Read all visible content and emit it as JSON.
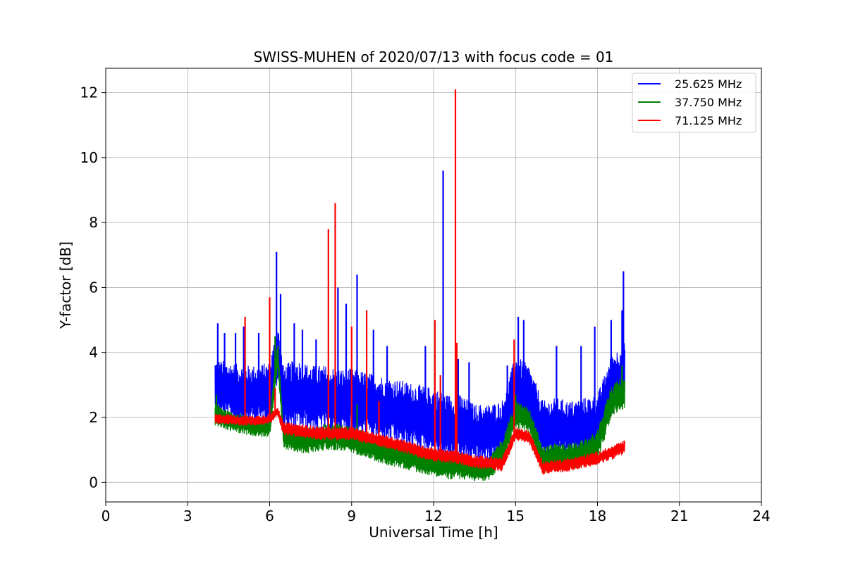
{
  "chart_data": {
    "type": "line",
    "title": "SWISS-MUHEN of 2020/07/13 with focus code = 01",
    "xlabel": "Universal Time [h]",
    "ylabel": "Y-factor [dB]",
    "xlim": [
      0,
      24
    ],
    "ylim": [
      -0.6,
      12.75
    ],
    "xticks": [
      0,
      3,
      6,
      9,
      12,
      15,
      18,
      21,
      24
    ],
    "yticks": [
      0,
      2,
      4,
      6,
      8,
      10,
      12
    ],
    "grid": true,
    "legend_position": "top-right",
    "series": [
      {
        "name": "25.625 MHz",
        "color": "#0000ff",
        "x": [
          4.0,
          4.5,
          5.0,
          5.5,
          6.0,
          6.3,
          6.5,
          7.0,
          7.5,
          8.0,
          8.5,
          9.0,
          9.5,
          10.0,
          10.5,
          11.0,
          11.5,
          12.0,
          12.5,
          13.0,
          13.5,
          14.0,
          14.5,
          15.0,
          15.5,
          16.0,
          16.5,
          17.0,
          17.5,
          18.0,
          18.5,
          19.0
        ],
        "y": [
          2.9,
          2.8,
          2.7,
          2.7,
          2.8,
          4.0,
          2.6,
          2.7,
          2.6,
          2.6,
          2.5,
          2.5,
          2.4,
          2.3,
          2.2,
          2.1,
          2.0,
          1.9,
          1.7,
          1.7,
          1.5,
          1.5,
          1.6,
          2.9,
          2.6,
          1.6,
          1.7,
          1.6,
          1.7,
          1.8,
          3.0,
          3.4
        ],
        "band": [
          0.9,
          0.9,
          0.9,
          0.9,
          0.9,
          0.9,
          1.0,
          1.1,
          1.0,
          1.0,
          1.0,
          1.0,
          1.0,
          1.0,
          1.0,
          1.0,
          1.0,
          1.0,
          1.0,
          1.0,
          0.9,
          0.9,
          0.9,
          1.0,
          1.0,
          0.9,
          0.9,
          0.9,
          0.9,
          0.9,
          0.9,
          0.9
        ],
        "spikes": [
          [
            4.1,
            4.9
          ],
          [
            4.35,
            4.6
          ],
          [
            4.75,
            4.6
          ],
          [
            5.05,
            4.8
          ],
          [
            5.6,
            4.6
          ],
          [
            6.25,
            7.1
          ],
          [
            6.4,
            5.8
          ],
          [
            6.9,
            4.9
          ],
          [
            7.2,
            4.7
          ],
          [
            7.7,
            4.4
          ],
          [
            8.5,
            6.0
          ],
          [
            8.8,
            5.5
          ],
          [
            9.2,
            6.4
          ],
          [
            9.8,
            4.7
          ],
          [
            10.3,
            4.2
          ],
          [
            11.7,
            4.2
          ],
          [
            12.35,
            9.6
          ],
          [
            12.9,
            3.8
          ],
          [
            13.3,
            3.7
          ],
          [
            14.7,
            3.6
          ],
          [
            15.1,
            5.1
          ],
          [
            15.3,
            5.0
          ],
          [
            16.5,
            4.2
          ],
          [
            17.4,
            4.2
          ],
          [
            17.9,
            4.8
          ],
          [
            18.5,
            5.0
          ],
          [
            18.9,
            5.3
          ],
          [
            18.95,
            6.5
          ]
        ]
      },
      {
        "name": "37.750 MHz",
        "color": "#008000",
        "x": [
          4.0,
          4.5,
          5.0,
          5.5,
          6.0,
          6.3,
          6.5,
          7.0,
          7.5,
          8.0,
          8.5,
          9.0,
          9.5,
          10.0,
          10.5,
          11.0,
          11.5,
          12.0,
          12.5,
          13.0,
          13.5,
          14.0,
          14.5,
          15.0,
          15.5,
          16.0,
          16.5,
          17.0,
          17.5,
          18.0,
          18.5,
          19.0
        ],
        "y": [
          2.1,
          1.9,
          1.8,
          1.7,
          1.7,
          3.9,
          1.4,
          1.3,
          1.3,
          1.4,
          1.4,
          1.3,
          1.2,
          1.0,
          0.9,
          0.8,
          0.7,
          0.6,
          0.5,
          0.5,
          0.4,
          0.4,
          0.9,
          2.1,
          1.9,
          0.7,
          0.8,
          0.8,
          0.9,
          1.1,
          2.5,
          2.8
        ],
        "band": [
          0.35,
          0.3,
          0.3,
          0.3,
          0.3,
          0.5,
          0.35,
          0.4,
          0.4,
          0.4,
          0.4,
          0.4,
          0.4,
          0.4,
          0.4,
          0.4,
          0.4,
          0.4,
          0.4,
          0.4,
          0.35,
          0.35,
          0.4,
          0.4,
          0.4,
          0.4,
          0.4,
          0.4,
          0.4,
          0.5,
          0.5,
          0.5
        ],
        "spikes": [
          [
            4.05,
            2.7
          ],
          [
            6.2,
            4.5
          ],
          [
            9.2,
            2.4
          ],
          [
            15.0,
            2.7
          ],
          [
            18.9,
            3.6
          ]
        ]
      },
      {
        "name": "71.125 MHz",
        "color": "#ff0000",
        "x": [
          4.0,
          4.5,
          5.0,
          5.5,
          6.0,
          6.3,
          6.5,
          7.0,
          7.5,
          8.0,
          8.5,
          9.0,
          9.5,
          10.0,
          10.5,
          11.0,
          11.5,
          12.0,
          12.5,
          13.0,
          13.5,
          14.0,
          14.5,
          15.0,
          15.5,
          16.0,
          16.5,
          17.0,
          17.5,
          18.0,
          18.5,
          19.0
        ],
        "y": [
          1.95,
          1.95,
          1.9,
          1.9,
          1.95,
          2.2,
          1.65,
          1.6,
          1.55,
          1.5,
          1.5,
          1.5,
          1.4,
          1.3,
          1.2,
          1.1,
          0.95,
          0.85,
          0.8,
          0.75,
          0.65,
          0.6,
          0.55,
          1.5,
          1.4,
          0.45,
          0.5,
          0.55,
          0.65,
          0.75,
          0.9,
          1.1
        ],
        "band": [
          0.15,
          0.15,
          0.15,
          0.15,
          0.15,
          0.15,
          0.2,
          0.2,
          0.2,
          0.2,
          0.2,
          0.2,
          0.2,
          0.2,
          0.2,
          0.2,
          0.2,
          0.2,
          0.2,
          0.2,
          0.2,
          0.2,
          0.2,
          0.2,
          0.2,
          0.2,
          0.2,
          0.2,
          0.2,
          0.2,
          0.2,
          0.2
        ],
        "spikes": [
          [
            5.1,
            5.1
          ],
          [
            6.0,
            5.7
          ],
          [
            6.2,
            2.9
          ],
          [
            8.15,
            7.8
          ],
          [
            8.4,
            8.6
          ],
          [
            9.0,
            4.8
          ],
          [
            9.55,
            5.3
          ],
          [
            10.0,
            2.5
          ],
          [
            12.05,
            5.0
          ],
          [
            12.25,
            3.3
          ],
          [
            12.8,
            12.1
          ],
          [
            12.85,
            4.3
          ],
          [
            14.95,
            4.4
          ]
        ]
      }
    ]
  }
}
